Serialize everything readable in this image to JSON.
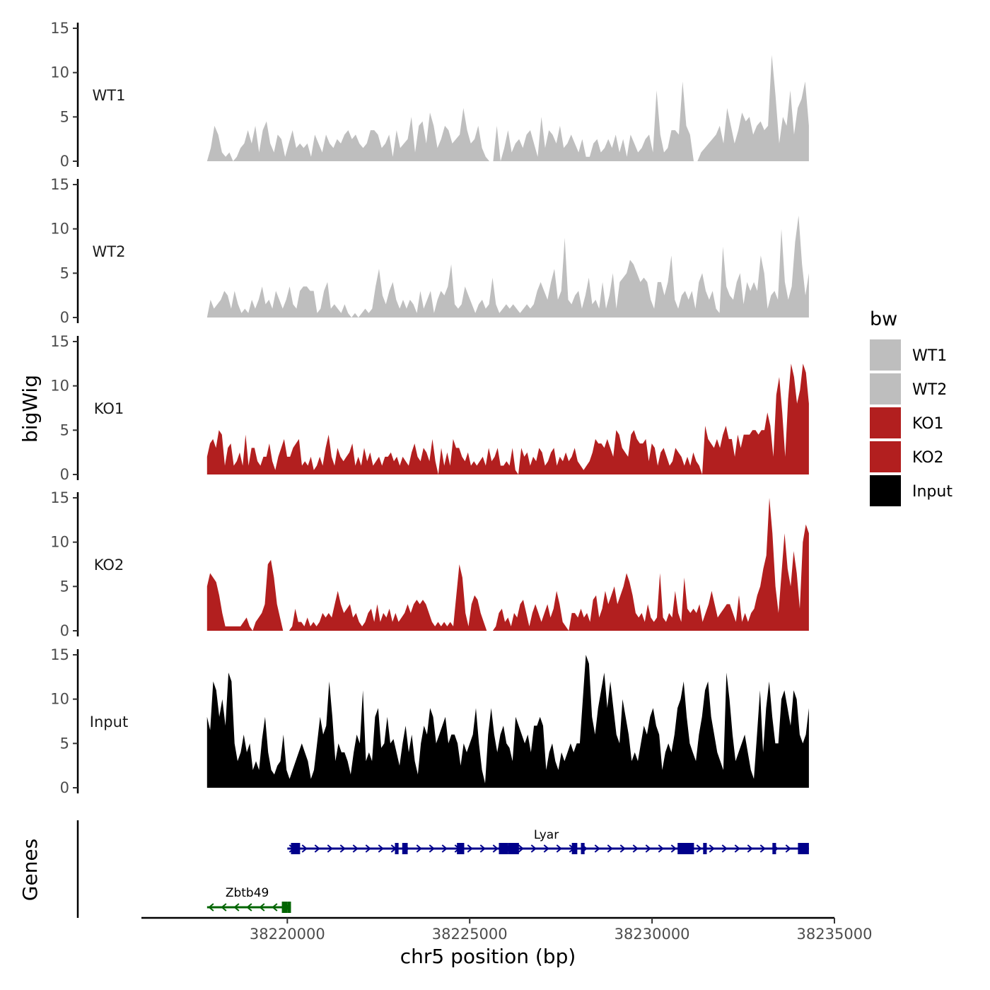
{
  "chart_data": {
    "type": "area",
    "y_axis_title": "bigWig",
    "genes_axis_title": "Genes",
    "x_axis_title": "chr5 position (bp)",
    "xlim": [
      38216000,
      38235000
    ],
    "x_ticks": [
      38220000,
      38225000,
      38230000,
      38235000
    ],
    "x_tick_labels": [
      "38220000",
      "38225000",
      "38230000",
      "38235000"
    ],
    "ylim": [
      0,
      15
    ],
    "y_ticks": [
      0,
      5,
      10,
      15
    ],
    "y_tick_labels": [
      "0",
      "5",
      "10",
      "15"
    ],
    "x_data_start": 38217800,
    "x_data_end": 38234300,
    "legend": {
      "title": "bw",
      "position": "right",
      "entries": [
        {
          "label": "WT1",
          "color": "#bebebe"
        },
        {
          "label": "WT2",
          "color": "#bebebe"
        },
        {
          "label": "KO1",
          "color": "#b21f1f"
        },
        {
          "label": "KO2",
          "color": "#b21f1f"
        },
        {
          "label": "Input",
          "color": "#000000"
        }
      ]
    },
    "series": [
      {
        "name": "WT1",
        "color": "#bebebe",
        "values": [
          0,
          1.5,
          4,
          3,
          1,
          0.5,
          1,
          0,
          0.5,
          1.5,
          2,
          3.5,
          2,
          4,
          1,
          3.5,
          4.5,
          2,
          1,
          3,
          2.5,
          0.5,
          2,
          3.5,
          1.5,
          2,
          1.5,
          2,
          0.5,
          3,
          2,
          1,
          3,
          2,
          1.5,
          2.5,
          2,
          3,
          3.5,
          2.5,
          3,
          2,
          1.5,
          2,
          3.5,
          3.5,
          3,
          1.5,
          2,
          3,
          0.5,
          3.5,
          1.5,
          2,
          2.5,
          5,
          1,
          4,
          4.5,
          2,
          5.5,
          4,
          1.5,
          2.5,
          4,
          3.5,
          2,
          2.5,
          3,
          6,
          3.5,
          2,
          2.5,
          4,
          1.5,
          0.5,
          0,
          0,
          4,
          0,
          1.5,
          3.5,
          1,
          2,
          2.5,
          1.5,
          3,
          3.5,
          2,
          0.5,
          5,
          1.5,
          3.5,
          3,
          2,
          4,
          1.5,
          2,
          3,
          2,
          1,
          2.5,
          0.5,
          0.5,
          2,
          2.5,
          1,
          1.5,
          2.5,
          1.5,
          3,
          1,
          2.5,
          0.5,
          3,
          2,
          1,
          1.5,
          2.5,
          3,
          1,
          8,
          3,
          1,
          1.5,
          3.5,
          3.5,
          3,
          9,
          4,
          3,
          0,
          0,
          1,
          1.5,
          2,
          2.5,
          3,
          4,
          2,
          6,
          4,
          2,
          3.5,
          5.5,
          4.5,
          5,
          3,
          4,
          4.5,
          3.5,
          4,
          12,
          7.5,
          2,
          5,
          4,
          8,
          3,
          6,
          7,
          9,
          4
        ]
      },
      {
        "name": "WT2",
        "color": "#bebebe",
        "values": [
          0,
          2,
          1,
          1.5,
          2,
          3,
          2.5,
          1,
          3,
          1.5,
          0.5,
          1,
          0.5,
          2,
          1,
          2,
          3.5,
          1.5,
          2,
          1,
          3,
          2,
          1,
          2,
          3.5,
          1.5,
          1,
          3,
          3.5,
          3.5,
          3,
          3,
          0.5,
          1,
          3,
          4,
          1,
          1.5,
          1,
          0.5,
          1.5,
          0.5,
          0,
          0.5,
          0,
          0.5,
          1,
          0.5,
          1,
          3.5,
          5.5,
          2.5,
          1.5,
          3,
          4,
          2,
          1,
          2,
          1,
          2,
          1.5,
          0.5,
          3,
          1,
          2,
          3,
          0.5,
          2,
          3,
          2.5,
          3.5,
          6,
          1.5,
          1,
          1.5,
          3.5,
          2.5,
          1.5,
          0.5,
          1.5,
          2,
          1,
          1.5,
          4.5,
          1.5,
          0.5,
          1,
          1.5,
          1,
          1.5,
          1,
          0.5,
          1,
          1.5,
          1,
          1.5,
          3,
          4,
          3,
          2,
          4,
          5.5,
          2,
          3,
          9,
          2,
          1.5,
          2.5,
          3,
          1,
          2.5,
          4.5,
          1.5,
          2,
          1,
          4,
          1,
          2.5,
          5,
          1,
          4,
          4.5,
          5,
          6.5,
          6,
          5,
          4,
          4.5,
          4,
          2,
          1,
          4,
          4,
          2.5,
          4,
          7,
          2,
          1,
          2.5,
          3,
          2,
          3,
          1,
          4,
          5,
          3,
          2,
          3,
          1,
          0.5,
          8,
          3.5,
          2.5,
          2,
          4,
          5,
          1.5,
          4,
          3,
          4,
          3,
          7,
          5,
          1,
          2.5,
          3,
          2,
          10,
          4,
          2,
          3.5,
          8.5,
          11.5,
          6,
          2.5,
          5
        ]
      },
      {
        "name": "KO1",
        "color": "#b21f1f",
        "values": [
          2,
          3.5,
          4,
          3,
          5,
          4.5,
          1,
          3,
          3.5,
          1,
          1.5,
          2.5,
          1,
          4.5,
          1,
          3,
          3,
          1.5,
          1,
          2,
          2,
          3.5,
          1.5,
          0.5,
          2,
          3,
          4,
          2,
          2,
          3,
          3.5,
          4,
          1,
          1.5,
          1,
          2,
          0.5,
          1,
          2,
          1,
          3,
          4.5,
          2,
          1,
          3,
          2,
          1.5,
          2,
          2.5,
          3.5,
          1,
          2,
          1,
          3,
          1.5,
          2.5,
          1,
          1.5,
          2,
          1,
          2,
          2,
          2.5,
          1.5,
          2,
          1,
          2,
          1.5,
          1,
          2.5,
          3.5,
          2,
          1.5,
          3,
          2.5,
          1.5,
          4,
          1.5,
          0,
          3,
          1,
          2.5,
          1,
          4,
          3,
          3,
          2,
          1.5,
          2.5,
          1,
          1.5,
          1,
          1.5,
          2,
          1,
          3,
          1.5,
          2,
          3,
          1,
          1,
          1.5,
          1,
          3,
          0.5,
          0,
          3,
          2,
          2.5,
          1,
          2,
          1.5,
          3,
          2.5,
          1,
          1.5,
          2.5,
          3,
          1,
          2,
          1.5,
          2.5,
          1.5,
          2,
          3,
          1.5,
          1,
          0.5,
          1,
          1.5,
          2.5,
          4,
          3.5,
          3.5,
          3,
          4,
          3,
          2,
          5,
          4.5,
          3,
          2.5,
          2,
          4.5,
          5,
          4,
          3.5,
          3.5,
          4,
          1.5,
          3.5,
          3,
          1,
          2.5,
          3,
          2,
          1,
          1.5,
          3,
          2.5,
          2,
          1,
          2,
          1,
          2.5,
          1.5,
          1,
          0,
          5.5,
          4,
          3.5,
          3,
          4,
          3,
          4.5,
          5.5,
          4,
          4,
          2,
          4.5,
          3,
          4.5,
          4.5,
          4.5,
          5,
          5,
          4.5,
          5,
          5,
          7,
          5.5,
          2,
          9,
          11,
          7,
          2,
          8.5,
          12.5,
          11,
          8,
          9.5,
          12.5,
          11.5,
          8
        ]
      },
      {
        "name": "KO2",
        "color": "#b21f1f",
        "values": [
          5,
          6.5,
          6,
          5.5,
          4,
          2,
          0.5,
          0.5,
          0.5,
          0.5,
          0.5,
          0.5,
          1,
          1.5,
          0.5,
          0,
          1,
          1.5,
          2,
          3,
          7.5,
          8,
          6,
          3,
          1.5,
          0,
          0,
          0,
          0.5,
          2.5,
          1,
          1,
          0.5,
          1.5,
          0.5,
          1,
          0.5,
          1,
          2,
          1.5,
          2,
          1.5,
          3,
          4.5,
          3,
          2,
          2.5,
          3,
          1.5,
          2,
          1,
          0.5,
          1,
          2,
          2.5,
          1,
          3,
          1,
          2,
          1.5,
          2.5,
          1,
          2,
          1,
          1.5,
          2,
          3,
          2,
          3,
          3.5,
          3,
          3.5,
          3,
          2,
          1,
          0.5,
          1,
          0.5,
          1,
          0.5,
          1,
          0.5,
          4,
          7.5,
          6,
          2,
          0.5,
          3,
          4,
          3.5,
          2,
          1,
          0,
          0,
          0,
          0.5,
          2,
          2.5,
          1,
          1.5,
          0.5,
          2,
          1.5,
          3,
          3.5,
          2,
          0.5,
          2,
          3,
          2,
          1,
          2,
          3,
          1.5,
          2.5,
          4.5,
          3,
          1,
          0.5,
          0,
          2,
          2,
          1.5,
          2.5,
          1.5,
          2,
          1,
          3.5,
          4,
          1.5,
          2.5,
          4.5,
          3,
          4,
          5,
          3,
          4,
          5,
          6.5,
          5.5,
          4,
          2,
          1.5,
          2,
          1,
          3,
          1.5,
          1,
          1.5,
          6.5,
          1.5,
          1,
          2,
          1.5,
          4.5,
          2,
          1,
          6,
          2.5,
          2,
          2.5,
          2,
          3,
          1,
          2,
          3,
          4.5,
          3,
          1.5,
          2,
          2.5,
          3,
          3,
          2,
          1,
          4,
          1,
          2,
          1,
          2,
          2.5,
          4,
          5,
          7,
          8.5,
          15,
          11,
          5,
          2,
          6.5,
          11,
          7,
          5,
          9,
          6.5,
          2.5,
          10,
          12,
          11
        ]
      },
      {
        "name": "Input",
        "color": "#000000",
        "values": [
          8,
          6.5,
          12,
          11,
          8,
          10,
          7,
          13,
          12,
          5,
          3,
          4,
          6,
          4,
          5,
          2,
          3,
          2,
          5.5,
          8,
          4,
          2,
          1.5,
          2.5,
          3,
          6,
          2,
          1,
          2,
          3,
          4,
          5,
          4,
          3,
          1,
          2,
          5,
          8,
          6,
          7,
          12,
          8,
          3,
          5,
          4,
          4,
          3,
          1.5,
          4,
          6,
          5,
          11,
          3,
          4,
          3,
          8,
          9,
          4.5,
          5,
          8,
          5,
          5.5,
          4,
          2.5,
          5,
          7,
          4,
          6,
          3,
          1.5,
          5,
          7,
          6,
          9,
          8,
          5,
          6,
          7,
          8,
          5,
          6,
          6,
          5,
          2.5,
          5,
          4,
          5,
          6,
          9,
          5,
          2,
          0.5,
          6,
          9,
          6,
          4,
          6,
          7,
          5,
          4.5,
          3,
          8,
          7,
          6,
          5,
          6,
          4,
          7,
          7,
          8,
          7,
          2,
          4,
          5,
          3,
          2,
          4,
          3,
          4,
          5,
          4,
          5,
          5,
          10,
          15,
          14,
          8,
          6,
          9,
          11,
          13,
          9,
          12,
          9,
          6,
          5,
          10,
          8,
          6,
          3,
          4,
          3,
          5,
          7,
          6,
          8,
          9,
          7,
          6,
          2,
          4,
          5,
          4,
          6,
          9,
          10,
          12,
          8,
          5,
          4,
          3,
          6,
          8,
          11,
          12,
          8,
          6,
          4,
          3,
          2,
          13,
          10,
          6,
          3,
          4,
          5,
          6,
          4,
          2,
          1,
          6,
          11,
          4,
          9,
          12,
          8,
          5,
          5,
          10,
          11,
          9,
          7,
          11,
          10,
          6,
          5,
          6,
          9
        ]
      }
    ],
    "genes": [
      {
        "name": "Lyar",
        "strand": "+",
        "color": "#00008b",
        "start": 38220000,
        "end": 38234300,
        "exons": [
          [
            38220100,
            38220350
          ],
          [
            38222950,
            38223050
          ],
          [
            38223150,
            38223300
          ],
          [
            38224650,
            38224850
          ],
          [
            38225800,
            38226050
          ],
          [
            38226050,
            38226350
          ],
          [
            38227800,
            38227950
          ],
          [
            38228050,
            38228150
          ],
          [
            38230700,
            38231150
          ],
          [
            38231400,
            38231500
          ],
          [
            38233300,
            38233400
          ],
          [
            38234000,
            38234300
          ]
        ]
      },
      {
        "name": "Zbtb49",
        "strand": "-",
        "color": "#006400",
        "start": 38217800,
        "end": 38220100,
        "exons": [
          [
            38219850,
            38220000
          ],
          [
            38220000,
            38220100
          ]
        ]
      }
    ]
  }
}
